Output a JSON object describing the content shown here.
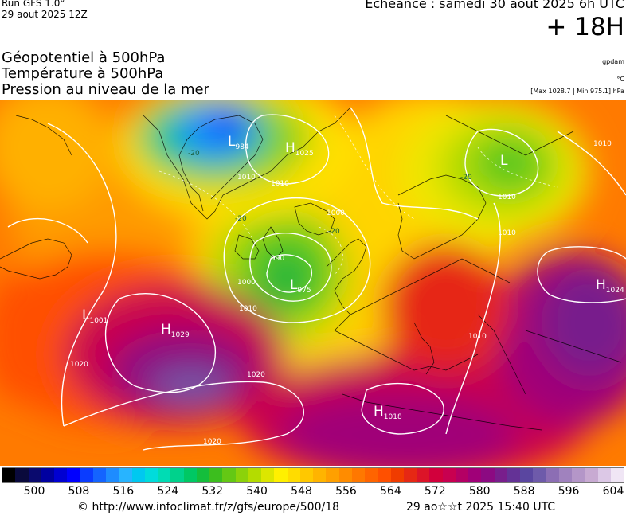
{
  "header": {
    "run": "Run GFS 1.0°",
    "run_date": "29 aout 2025 12Z",
    "echeance": "Echéance : samedi 30 aout 2025 6h UTC",
    "lead": "+ 18H"
  },
  "params": {
    "line1": "Géopotentiel à 500hPa",
    "line2": "Température à 500hPa",
    "line3": "Pression au niveau de la mer"
  },
  "units": {
    "geopotential": "gpdam",
    "temperature": "°C",
    "pressure": "[Max 1028.7 | Min 975.1] hPa"
  },
  "pressure_centers": [
    {
      "type": "L",
      "value": "984"
    },
    {
      "type": "H",
      "value": "1025"
    },
    {
      "type": "L",
      "value": "975"
    },
    {
      "type": "L",
      "value": "1001"
    },
    {
      "type": "H",
      "value": "1029"
    },
    {
      "type": "H",
      "value": "1018"
    },
    {
      "type": "L",
      "value": ""
    },
    {
      "type": "H",
      "value": "1024"
    }
  ],
  "isobar_labels": [
    "1020",
    "1020",
    "1020",
    "1010",
    "1010",
    "1010",
    "1010",
    "1000",
    "1000",
    "990",
    "1010",
    "1010",
    "1010"
  ],
  "temperature_labels": [
    "-20",
    "-20",
    "-20",
    "-20"
  ],
  "scale": {
    "ticks": [
      "500",
      "508",
      "516",
      "524",
      "532",
      "540",
      "548",
      "556",
      "564",
      "572",
      "580",
      "588",
      "596",
      "604"
    ],
    "colors": [
      "#000000",
      "#0a0a3c",
      "#0a0a6e",
      "#0000a0",
      "#0000d2",
      "#0000ff",
      "#0a3cff",
      "#1464ff",
      "#1e8cff",
      "#28b4ff",
      "#00c8f0",
      "#00dcdc",
      "#00dcb4",
      "#00d28c",
      "#00c864",
      "#14be3c",
      "#3cbe1e",
      "#64c814",
      "#8cd20a",
      "#b4dc00",
      "#dce600",
      "#fff000",
      "#ffdc00",
      "#ffc800",
      "#ffb400",
      "#ffa000",
      "#ff8c00",
      "#ff7800",
      "#ff6400",
      "#ff5000",
      "#f03c00",
      "#e62814",
      "#dc1428",
      "#d2003c",
      "#c80050",
      "#b40064",
      "#a00078",
      "#8c0a82",
      "#781e8c",
      "#643296",
      "#5a46a0",
      "#6e5aaa",
      "#8c6eb4",
      "#a082be",
      "#b496c8",
      "#c8aad2",
      "#dcc8e6",
      "#f0e6f5"
    ]
  },
  "footer": {
    "copyright": "© http://www.infoclimat.fr/z/gfs/europe/500/18",
    "generated": "29 ao☆☆t 2025 15:40 UTC"
  }
}
